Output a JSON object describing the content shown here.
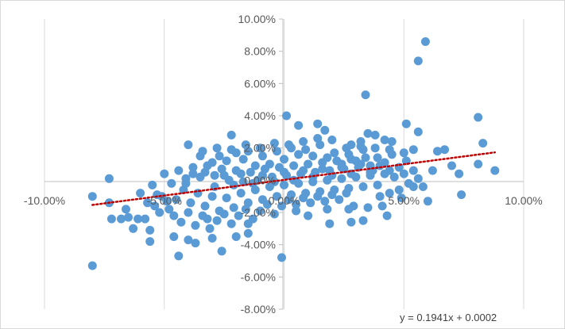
{
  "chart_data": {
    "type": "scatter",
    "title": "",
    "xlabel": "",
    "ylabel": "",
    "xlim": [
      -0.1,
      0.1
    ],
    "ylim": [
      -0.08,
      0.1
    ],
    "x_ticks": [
      {
        "value": -0.1,
        "label": "-10.00%"
      },
      {
        "value": -0.05,
        "label": "-5.00%"
      },
      {
        "value": 0.0,
        "label": "0.00%"
      },
      {
        "value": 0.05,
        "label": "5.00%"
      },
      {
        "value": 0.1,
        "label": "10.00%"
      }
    ],
    "y_ticks": [
      {
        "value": 0.1,
        "label": "10.00%"
      },
      {
        "value": 0.08,
        "label": "8.00%"
      },
      {
        "value": 0.06,
        "label": "6.00%"
      },
      {
        "value": 0.04,
        "label": "4.00%"
      },
      {
        "value": 0.02,
        "label": "2.00%"
      },
      {
        "value": 0.0,
        "label": "0.00%"
      },
      {
        "value": -0.02,
        "label": "-2.00%"
      },
      {
        "value": -0.04,
        "label": "-4.00%"
      },
      {
        "value": -0.06,
        "label": "-6.00%"
      },
      {
        "value": -0.08,
        "label": "-8.00%"
      }
    ],
    "grid": "vertical",
    "marker_color": "#5b9bd5",
    "trendline": {
      "equation": "y = 0.1941x + 0.0002",
      "slope": 0.1941,
      "intercept": 0.0002,
      "color": "#c00000",
      "style": "dotted",
      "x_range": [
        -0.08,
        0.088
      ]
    },
    "series": [
      {
        "points": [
          [
            0.059,
            0.086
          ],
          [
            0.056,
            0.074
          ],
          [
            0.034,
            0.053
          ],
          [
            0.081,
            0.039
          ],
          [
            0.083,
            0.023
          ],
          [
            0.051,
            0.035
          ],
          [
            0.056,
            0.03
          ],
          [
            0.054,
            0.019
          ],
          [
            0.067,
            0.019
          ],
          [
            0.064,
            0.018
          ],
          [
            0.081,
            0.01
          ],
          [
            0.088,
            0.006
          ],
          [
            0.07,
            0.009
          ],
          [
            0.073,
            0.004
          ],
          [
            0.074,
            -0.009
          ],
          [
            0.06,
            -0.013
          ],
          [
            0.043,
            -0.022
          ],
          [
            0.033,
            -0.025
          ],
          [
            0.028,
            -0.026
          ],
          [
            0.019,
            -0.027
          ],
          [
            -0.08,
            -0.053
          ],
          [
            -0.08,
            -0.01
          ],
          [
            -0.073,
            -0.014
          ],
          [
            -0.073,
            0.001
          ],
          [
            -0.072,
            -0.024
          ],
          [
            -0.068,
            -0.024
          ],
          [
            -0.066,
            -0.018
          ],
          [
            -0.065,
            -0.023
          ],
          [
            -0.063,
            -0.03
          ],
          [
            -0.061,
            -0.024
          ],
          [
            -0.058,
            -0.024
          ],
          [
            -0.056,
            -0.031
          ],
          [
            -0.056,
            -0.038
          ],
          [
            -0.054,
            -0.016
          ],
          [
            -0.052,
            -0.02
          ],
          [
            -0.051,
            -0.01
          ],
          [
            -0.049,
            -0.013
          ],
          [
            -0.046,
            -0.035
          ],
          [
            -0.044,
            -0.047
          ],
          [
            -0.04,
            -0.037
          ],
          [
            -0.037,
            -0.039
          ],
          [
            -0.032,
            -0.024
          ],
          [
            -0.03,
            -0.036
          ],
          [
            -0.026,
            -0.044
          ],
          [
            -0.02,
            -0.035
          ],
          [
            -0.015,
            -0.027
          ],
          [
            -0.015,
            -0.033
          ],
          [
            -0.001,
            -0.048
          ],
          [
            -0.04,
            0.022
          ],
          [
            -0.022,
            0.028
          ],
          [
            0.001,
            0.04
          ],
          [
            0.006,
            0.034
          ],
          [
            0.014,
            0.035
          ],
          [
            0.017,
            0.031
          ],
          [
            0.035,
            0.029
          ],
          [
            0.038,
            0.028
          ],
          [
            0.042,
            0.025
          ],
          [
            0.045,
            0.024
          ],
          [
            0.032,
            0.021
          ],
          [
            0.028,
            0.022
          ],
          [
            0.005,
            -0.019
          ],
          [
            0.01,
            -0.022
          ],
          [
            0.018,
            -0.018
          ],
          [
            0.027,
            -0.018
          ],
          [
            0.029,
            -0.016
          ],
          [
            0.035,
            -0.017
          ],
          [
            0.041,
            -0.016
          ],
          [
            0.049,
            -0.011
          ],
          [
            0.054,
            -0.004
          ],
          [
            0.062,
            0.006
          ],
          [
            -0.035,
            0.015
          ],
          [
            -0.03,
            0.011
          ],
          [
            -0.027,
            0.015
          ],
          [
            -0.024,
            0.012
          ],
          [
            -0.02,
            0.017
          ],
          [
            -0.017,
            0.013
          ],
          [
            -0.015,
            0.018
          ],
          [
            -0.012,
            0.009
          ],
          [
            -0.009,
            0.015
          ],
          [
            -0.006,
            0.01
          ],
          [
            -0.003,
            0.018
          ],
          [
            0.0,
            0.013
          ],
          [
            0.003,
            0.02
          ],
          [
            0.006,
            0.016
          ],
          [
            0.009,
            0.019
          ],
          [
            0.012,
            0.015
          ],
          [
            0.015,
            0.022
          ],
          [
            0.018,
            0.014
          ],
          [
            0.021,
            0.017
          ],
          [
            0.024,
            0.01
          ],
          [
            0.027,
            0.016
          ],
          [
            0.03,
            0.012
          ],
          [
            0.033,
            0.019
          ],
          [
            0.036,
            0.009
          ],
          [
            0.039,
            0.014
          ],
          [
            0.042,
            0.011
          ],
          [
            0.045,
            0.016
          ],
          [
            0.048,
            0.008
          ],
          [
            0.051,
            0.012
          ],
          [
            0.054,
            0.006
          ],
          [
            -0.045,
            -0.012
          ],
          [
            -0.042,
            -0.006
          ],
          [
            -0.039,
            -0.014
          ],
          [
            -0.036,
            -0.008
          ],
          [
            -0.033,
            -0.016
          ],
          [
            -0.03,
            -0.01
          ],
          [
            -0.027,
            -0.019
          ],
          [
            -0.024,
            -0.011
          ],
          [
            -0.021,
            -0.017
          ],
          [
            -0.018,
            -0.008
          ],
          [
            -0.015,
            -0.014
          ],
          [
            -0.012,
            -0.006
          ],
          [
            -0.009,
            -0.012
          ],
          [
            -0.006,
            -0.004
          ],
          [
            -0.003,
            -0.01
          ],
          [
            0.0,
            -0.003
          ],
          [
            0.003,
            -0.009
          ],
          [
            0.006,
            -0.002
          ],
          [
            0.009,
            -0.008
          ],
          [
            0.012,
            -0.001
          ],
          [
            0.015,
            -0.007
          ],
          [
            0.018,
            0.0
          ],
          [
            0.021,
            -0.006
          ],
          [
            0.024,
            0.001
          ],
          [
            0.027,
            -0.005
          ],
          [
            0.03,
            0.002
          ],
          [
            0.033,
            -0.004
          ],
          [
            0.036,
            0.003
          ],
          [
            0.039,
            -0.003
          ],
          [
            0.042,
            0.004
          ],
          [
            -0.05,
            0.004
          ],
          [
            -0.047,
            -0.002
          ],
          [
            -0.044,
            0.006
          ],
          [
            -0.041,
            0.001
          ],
          [
            -0.038,
            0.008
          ],
          [
            -0.035,
            0.002
          ],
          [
            -0.032,
            0.009
          ],
          [
            -0.029,
            0.003
          ],
          [
            -0.026,
            0.007
          ],
          [
            -0.023,
            0.0
          ],
          [
            -0.02,
            0.006
          ],
          [
            -0.017,
            -0.001
          ],
          [
            -0.014,
            0.005
          ],
          [
            -0.011,
            0.0
          ],
          [
            -0.008,
            0.007
          ],
          [
            -0.005,
            0.002
          ],
          [
            -0.002,
            0.008
          ],
          [
            0.001,
            0.003
          ],
          [
            0.004,
            0.009
          ],
          [
            0.007,
            0.004
          ],
          [
            0.01,
            0.01
          ],
          [
            0.013,
            0.005
          ],
          [
            0.016,
            0.011
          ],
          [
            0.019,
            0.006
          ],
          [
            0.022,
            0.012
          ],
          [
            0.025,
            0.007
          ],
          [
            0.028,
            0.013
          ],
          [
            0.031,
            0.008
          ],
          [
            0.034,
            0.014
          ],
          [
            0.037,
            0.006
          ],
          [
            -0.06,
            -0.008
          ],
          [
            -0.057,
            -0.014
          ],
          [
            -0.055,
            -0.003
          ],
          [
            -0.053,
            -0.009
          ],
          [
            -0.048,
            -0.018
          ],
          [
            -0.046,
            -0.022
          ],
          [
            -0.043,
            -0.026
          ],
          [
            -0.04,
            -0.02
          ],
          [
            -0.037,
            -0.028
          ],
          [
            -0.034,
            -0.022
          ],
          [
            -0.031,
            -0.03
          ],
          [
            -0.028,
            -0.025
          ],
          [
            -0.025,
            -0.021
          ],
          [
            -0.022,
            -0.027
          ],
          [
            -0.019,
            -0.022
          ],
          [
            -0.016,
            -0.018
          ],
          [
            -0.013,
            -0.024
          ],
          [
            -0.01,
            -0.019
          ],
          [
            -0.007,
            -0.015
          ],
          [
            -0.004,
            -0.021
          ],
          [
            -0.001,
            -0.016
          ],
          [
            0.002,
            -0.012
          ],
          [
            0.005,
            -0.015
          ],
          [
            0.008,
            -0.011
          ],
          [
            0.011,
            -0.014
          ],
          [
            0.014,
            -0.01
          ],
          [
            0.017,
            -0.013
          ],
          [
            0.02,
            -0.009
          ],
          [
            0.023,
            -0.012
          ],
          [
            0.026,
            -0.008
          ],
          [
            -0.034,
            0.018
          ],
          [
            -0.028,
            0.02
          ],
          [
            -0.022,
            0.019
          ],
          [
            -0.016,
            0.022
          ],
          [
            -0.01,
            0.02
          ],
          [
            -0.004,
            0.023
          ],
          [
            0.002,
            0.022
          ],
          [
            0.008,
            0.024
          ],
          [
            0.014,
            0.026
          ],
          [
            0.02,
            0.025
          ],
          [
            0.026,
            0.02
          ],
          [
            0.032,
            0.024
          ],
          [
            0.038,
            0.02
          ],
          [
            0.044,
            0.019
          ],
          [
            0.05,
            0.017
          ],
          [
            -0.041,
            -0.002
          ],
          [
            -0.038,
            0.004
          ],
          [
            -0.033,
            0.005
          ],
          [
            -0.029,
            -0.004
          ],
          [
            -0.025,
            0.003
          ],
          [
            -0.021,
            -0.003
          ],
          [
            -0.018,
            0.004
          ],
          [
            -0.013,
            -0.002
          ],
          [
            -0.009,
            0.003
          ],
          [
            -0.004,
            -0.001
          ],
          [
            0.0,
            0.005
          ],
          [
            0.004,
            0.0
          ],
          [
            0.008,
            0.006
          ],
          [
            0.012,
            0.002
          ],
          [
            0.016,
            0.007
          ],
          [
            0.02,
            0.003
          ],
          [
            0.024,
            0.008
          ],
          [
            0.028,
            0.004
          ],
          [
            0.032,
            0.01
          ],
          [
            0.036,
            0.005
          ],
          [
            0.04,
            0.009
          ],
          [
            0.044,
            0.006
          ],
          [
            0.046,
            0.002
          ],
          [
            0.05,
            0.004
          ],
          [
            0.052,
            -0.002
          ],
          [
            0.056,
            0.001
          ],
          [
            0.058,
            -0.004
          ],
          [
            0.048,
            -0.006
          ],
          [
            0.044,
            -0.008
          ],
          [
            0.04,
            -0.01
          ]
        ]
      }
    ]
  }
}
